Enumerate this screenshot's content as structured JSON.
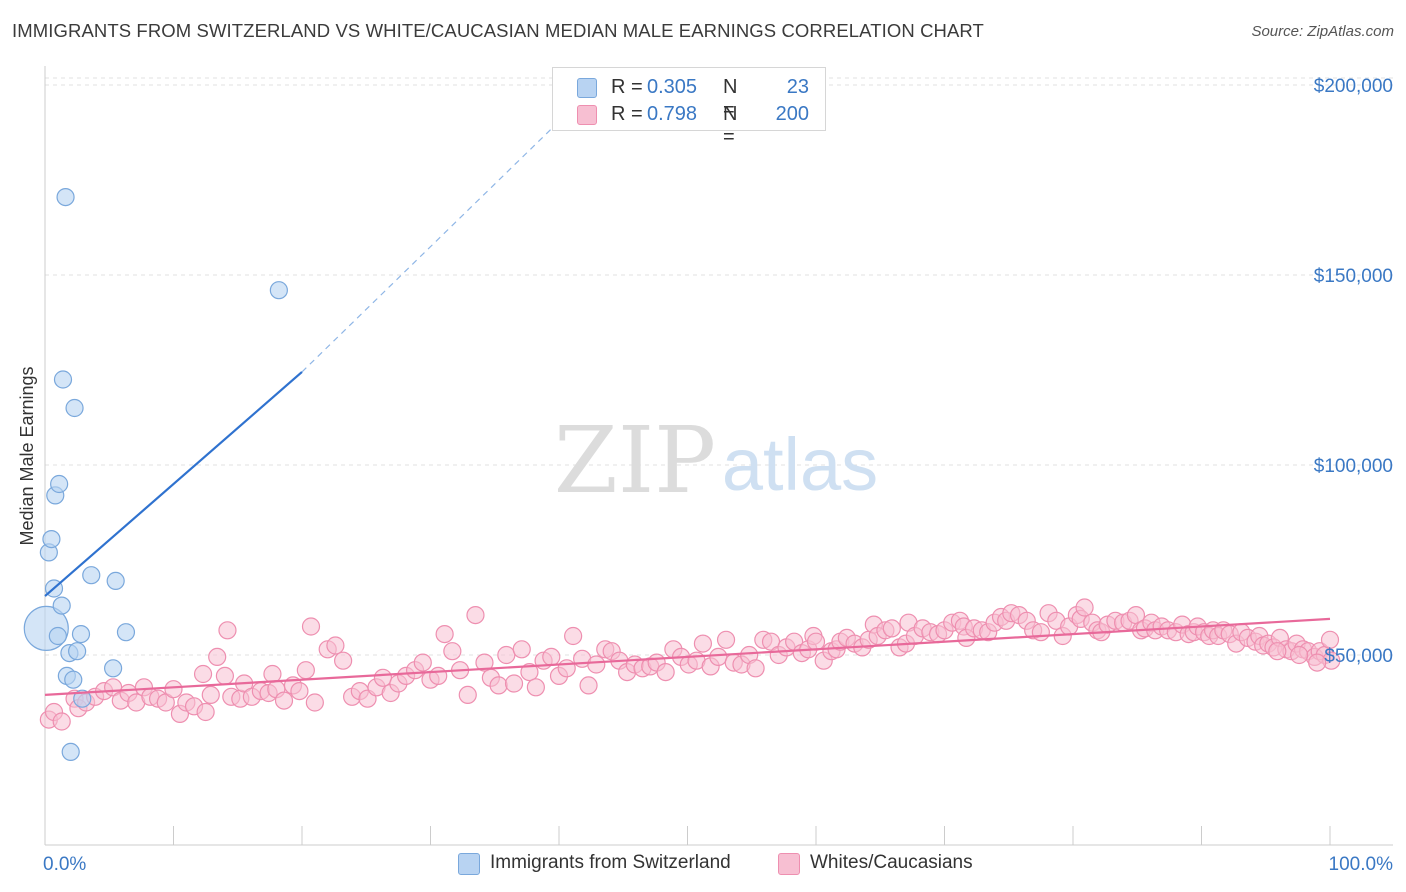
{
  "title": "IMMIGRANTS FROM SWITZERLAND VS WHITE/CAUCASIAN MEDIAN MALE EARNINGS CORRELATION CHART",
  "source": "Source: ZipAtlas.com",
  "watermark": {
    "zip": "ZIP",
    "atlas": "atlas"
  },
  "colors": {
    "blue_fill": "#b8d3f2",
    "blue_stroke": "#7aa8dc",
    "blue_line": "#2f72cf",
    "pink_fill": "#f7bfd2",
    "pink_stroke": "#ee8fb0",
    "pink_line": "#e8699a",
    "axis_text": "#3a78c4",
    "grid": "#e2e2e2"
  },
  "legend": {
    "rows": [
      {
        "r_label": "R = ",
        "r_value": "0.305",
        "n_label": "N = ",
        "n_value": "23"
      },
      {
        "r_label": "R = ",
        "r_value": "0.798",
        "n_label": "N = ",
        "n_value": "200"
      }
    ]
  },
  "bottom_legend": {
    "series1": "Immigrants from Switzerland",
    "series2": "Whites/Caucasians"
  },
  "chart_data": {
    "type": "scatter",
    "title": "IMMIGRANTS FROM SWITZERLAND VS WHITE/CAUCASIAN MEDIAN MALE EARNINGS CORRELATION CHART",
    "xlabel": "",
    "ylabel": "Median Male Earnings",
    "xlim": [
      0,
      100
    ],
    "ylim": [
      0,
      205000
    ],
    "x_tick_labels": [
      "0.0%",
      "100.0%"
    ],
    "y_ticks": [
      50000,
      100000,
      150000,
      200000
    ],
    "y_tick_labels": [
      "$50,000",
      "$100,000",
      "$150,000",
      "$200,000"
    ],
    "series": [
      {
        "name": "Immigrants from Switzerland",
        "r": 0.305,
        "n": 23,
        "points": [
          [
            0.1,
            57000,
            "large"
          ],
          [
            0.3,
            77000
          ],
          [
            0.5,
            80500
          ],
          [
            0.7,
            67500
          ],
          [
            0.8,
            92000
          ],
          [
            1.0,
            55000
          ],
          [
            1.1,
            95000
          ],
          [
            1.3,
            63000
          ],
          [
            1.4,
            122500
          ],
          [
            1.6,
            170500
          ],
          [
            1.7,
            44500
          ],
          [
            1.9,
            50500
          ],
          [
            2.0,
            24500
          ],
          [
            2.2,
            43500
          ],
          [
            2.3,
            115000
          ],
          [
            2.5,
            51000
          ],
          [
            2.8,
            55500
          ],
          [
            2.9,
            38500
          ],
          [
            3.6,
            71000
          ],
          [
            5.3,
            46500
          ],
          [
            5.5,
            69500
          ],
          [
            6.3,
            56000
          ],
          [
            18.2,
            146000
          ]
        ],
        "trend": {
          "x": [
            0,
            20
          ],
          "y": [
            65500,
            124500
          ]
        },
        "trend_extension": {
          "x": [
            20,
            42
          ],
          "y": [
            124500,
            197000
          ]
        }
      },
      {
        "name": "Whites/Caucasians",
        "r": 0.798,
        "n": 200,
        "points": [
          [
            0.3,
            33000
          ],
          [
            0.7,
            35000
          ],
          [
            1.3,
            32500
          ],
          [
            2.3,
            38500
          ],
          [
            2.6,
            36000
          ],
          [
            3.2,
            37500
          ],
          [
            3.9,
            39000
          ],
          [
            4.6,
            40500
          ],
          [
            5.3,
            41500
          ],
          [
            5.9,
            38000
          ],
          [
            6.5,
            40000
          ],
          [
            7.1,
            37500
          ],
          [
            7.7,
            41500
          ],
          [
            8.2,
            39000
          ],
          [
            8.8,
            38500
          ],
          [
            9.4,
            37500
          ],
          [
            10.0,
            41000
          ],
          [
            10.5,
            34500
          ],
          [
            11.0,
            37500
          ],
          [
            11.6,
            36500
          ],
          [
            12.3,
            45000
          ],
          [
            12.5,
            35000
          ],
          [
            12.9,
            39500
          ],
          [
            13.4,
            49500
          ],
          [
            14.0,
            44500
          ],
          [
            14.2,
            56500
          ],
          [
            14.5,
            39000
          ],
          [
            15.2,
            38500
          ],
          [
            15.5,
            42500
          ],
          [
            16.1,
            39000
          ],
          [
            16.8,
            40500
          ],
          [
            17.4,
            40000
          ],
          [
            17.7,
            45000
          ],
          [
            18.0,
            41000
          ],
          [
            18.6,
            38000
          ],
          [
            19.3,
            42000
          ],
          [
            19.8,
            40500
          ],
          [
            20.3,
            46000
          ],
          [
            20.7,
            57500
          ],
          [
            21.0,
            37500
          ],
          [
            22.0,
            51500
          ],
          [
            22.6,
            52500
          ],
          [
            23.2,
            48500
          ],
          [
            23.9,
            39000
          ],
          [
            24.5,
            40500
          ],
          [
            25.1,
            38500
          ],
          [
            25.8,
            41500
          ],
          [
            26.3,
            44000
          ],
          [
            26.9,
            40000
          ],
          [
            27.5,
            42500
          ],
          [
            28.1,
            44500
          ],
          [
            28.8,
            46000
          ],
          [
            29.4,
            48000
          ],
          [
            30.0,
            43500
          ],
          [
            30.6,
            44500
          ],
          [
            31.1,
            55500
          ],
          [
            31.7,
            51000
          ],
          [
            32.3,
            46000
          ],
          [
            32.9,
            39500
          ],
          [
            33.5,
            60500
          ],
          [
            34.2,
            48000
          ],
          [
            34.7,
            44000
          ],
          [
            35.3,
            42000
          ],
          [
            35.9,
            50000
          ],
          [
            36.5,
            42500
          ],
          [
            37.1,
            51500
          ],
          [
            37.7,
            45500
          ],
          [
            38.2,
            41500
          ],
          [
            38.8,
            48500
          ],
          [
            39.4,
            49500
          ],
          [
            40.0,
            44500
          ],
          [
            40.6,
            46500
          ],
          [
            41.1,
            55000
          ],
          [
            41.8,
            49000
          ],
          [
            42.3,
            42000
          ],
          [
            42.9,
            47500
          ],
          [
            43.6,
            51500
          ],
          [
            44.1,
            51000
          ],
          [
            44.7,
            48500
          ],
          [
            45.3,
            45500
          ],
          [
            45.9,
            47500
          ],
          [
            46.5,
            46500
          ],
          [
            47.1,
            47000
          ],
          [
            47.6,
            48000
          ],
          [
            48.3,
            45500
          ],
          [
            48.9,
            51500
          ],
          [
            49.5,
            49500
          ],
          [
            50.1,
            47500
          ],
          [
            50.7,
            48500
          ],
          [
            51.2,
            53000
          ],
          [
            51.8,
            47000
          ],
          [
            52.4,
            49500
          ],
          [
            53.0,
            54000
          ],
          [
            53.6,
            48000
          ],
          [
            54.2,
            47500
          ],
          [
            54.8,
            50000
          ],
          [
            55.3,
            46500
          ],
          [
            55.9,
            54000
          ],
          [
            56.5,
            53500
          ],
          [
            57.1,
            50000
          ],
          [
            57.7,
            52000
          ],
          [
            58.3,
            53500
          ],
          [
            58.9,
            50500
          ],
          [
            59.4,
            51500
          ],
          [
            59.8,
            55000
          ],
          [
            60.0,
            53500
          ],
          [
            60.6,
            48500
          ],
          [
            61.2,
            51000
          ],
          [
            61.6,
            51500
          ],
          [
            61.9,
            53500
          ],
          [
            62.4,
            54500
          ],
          [
            63.0,
            53000
          ],
          [
            63.6,
            52000
          ],
          [
            64.1,
            54000
          ],
          [
            64.5,
            58000
          ],
          [
            64.8,
            55000
          ],
          [
            65.4,
            56500
          ],
          [
            65.9,
            57000
          ],
          [
            66.5,
            52000
          ],
          [
            67.0,
            53000
          ],
          [
            67.2,
            58500
          ],
          [
            67.7,
            55000
          ],
          [
            68.3,
            57000
          ],
          [
            68.9,
            56000
          ],
          [
            69.5,
            55500
          ],
          [
            70.0,
            56500
          ],
          [
            70.6,
            58500
          ],
          [
            71.2,
            59000
          ],
          [
            71.5,
            57500
          ],
          [
            71.7,
            54500
          ],
          [
            72.3,
            57000
          ],
          [
            72.9,
            56500
          ],
          [
            73.4,
            56000
          ],
          [
            73.9,
            58500
          ],
          [
            74.4,
            60000
          ],
          [
            74.8,
            59000
          ],
          [
            75.2,
            61000
          ],
          [
            75.8,
            60500
          ],
          [
            76.4,
            59000
          ],
          [
            76.9,
            56500
          ],
          [
            77.5,
            56000
          ],
          [
            78.1,
            61000
          ],
          [
            78.7,
            59000
          ],
          [
            79.2,
            55000
          ],
          [
            79.7,
            57500
          ],
          [
            80.3,
            60500
          ],
          [
            80.6,
            59500
          ],
          [
            80.9,
            62500
          ],
          [
            81.5,
            58500
          ],
          [
            81.9,
            56500
          ],
          [
            82.2,
            56000
          ],
          [
            82.7,
            58000
          ],
          [
            83.3,
            59000
          ],
          [
            83.9,
            58500
          ],
          [
            84.4,
            59000
          ],
          [
            84.9,
            60500
          ],
          [
            85.3,
            56500
          ],
          [
            85.6,
            57000
          ],
          [
            86.1,
            58500
          ],
          [
            86.4,
            56500
          ],
          [
            86.9,
            57500
          ],
          [
            87.4,
            56500
          ],
          [
            88.0,
            56000
          ],
          [
            88.5,
            58000
          ],
          [
            89.0,
            55500
          ],
          [
            89.4,
            56000
          ],
          [
            89.7,
            57500
          ],
          [
            90.2,
            56000
          ],
          [
            90.6,
            55000
          ],
          [
            90.9,
            56500
          ],
          [
            91.3,
            55000
          ],
          [
            91.7,
            56500
          ],
          [
            92.2,
            55500
          ],
          [
            92.7,
            53000
          ],
          [
            93.1,
            56000
          ],
          [
            93.6,
            54500
          ],
          [
            94.2,
            53500
          ],
          [
            94.5,
            55000
          ],
          [
            94.8,
            52500
          ],
          [
            95.2,
            53000
          ],
          [
            95.6,
            52000
          ],
          [
            96.1,
            54500
          ],
          [
            96.6,
            51500
          ],
          [
            97.0,
            51000
          ],
          [
            97.4,
            53000
          ],
          [
            97.9,
            51500
          ],
          [
            98.3,
            51000
          ],
          [
            98.8,
            49500
          ],
          [
            99.2,
            51000
          ],
          [
            99.6,
            50000
          ],
          [
            100.0,
            54000
          ],
          [
            100.1,
            48500
          ],
          [
            99.0,
            48000
          ],
          [
            97.6,
            50000
          ],
          [
            95.9,
            51000
          ]
        ],
        "trend": {
          "x": [
            0,
            100
          ],
          "y": [
            39500,
            59500
          ]
        }
      }
    ]
  }
}
